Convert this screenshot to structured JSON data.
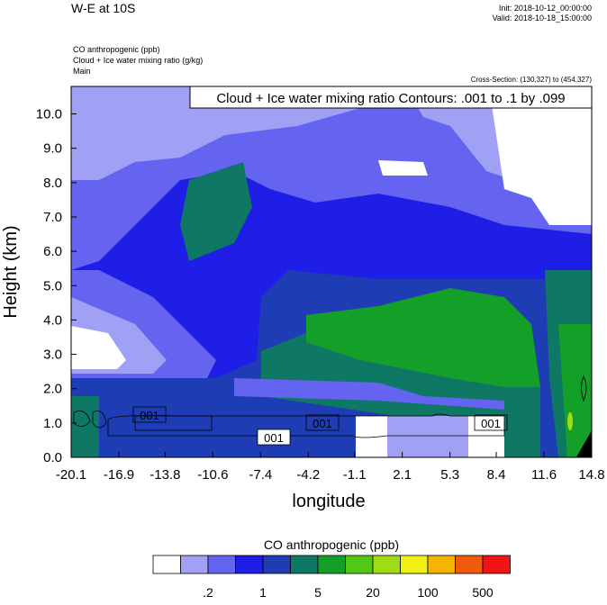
{
  "chart_data": {
    "type": "contour",
    "title": "W-E at 10S",
    "init": "Init: 2018-10-12_00:00:00",
    "valid": "Valid: 2018-10-18_15:00:00",
    "fields": [
      "CO anthropogenic   (ppb)",
      "Cloud + Ice water mixing ratio   (g/kg)",
      "Main"
    ],
    "cross_section": "Cross-Section: (130,327) to (454,327)",
    "contour_info": "Cloud + Ice water mixing ratio Contours: .001 to .1 by .099",
    "xlabel": "longitude",
    "ylabel": "Height (km)",
    "xlim": [
      -20.1,
      14.8
    ],
    "ylim": [
      0,
      10.8
    ],
    "xticks": [
      -20.1,
      -16.9,
      -13.8,
      -10.6,
      -7.4,
      -4.2,
      -1.1,
      2.1,
      5.3,
      8.4,
      11.6,
      14.8
    ],
    "yticks": [
      {
        "value": 0,
        "label": "0.0"
      },
      {
        "value": 1,
        "label": "1.0"
      },
      {
        "value": 2,
        "label": "2.0"
      },
      {
        "value": 3,
        "label": "3.0"
      },
      {
        "value": 4,
        "label": "4.0"
      },
      {
        "value": 5,
        "label": "5.0"
      },
      {
        "value": 6,
        "label": "6.0"
      },
      {
        "value": 7,
        "label": "7.0"
      },
      {
        "value": 8,
        "label": "8.0"
      },
      {
        "value": 9,
        "label": "9.0"
      },
      {
        "value": 10,
        "label": "10.0"
      }
    ],
    "contour_labels": [
      "001",
      "001",
      "001",
      "001"
    ],
    "colorbar": {
      "title": "CO anthropogenic  (ppb)",
      "colors": [
        "#ffffff",
        "#a0a0f5",
        "#6464f0",
        "#1e1ee6",
        "#1e3cb4",
        "#0f7864",
        "#14a028",
        "#50c814",
        "#a0dc14",
        "#f0f014",
        "#f5b400",
        "#f05a0a",
        "#f01414"
      ],
      "labels": [
        null,
        ".2",
        null,
        "1",
        null,
        "5",
        null,
        "20",
        null,
        "100",
        null,
        "500"
      ]
    }
  }
}
